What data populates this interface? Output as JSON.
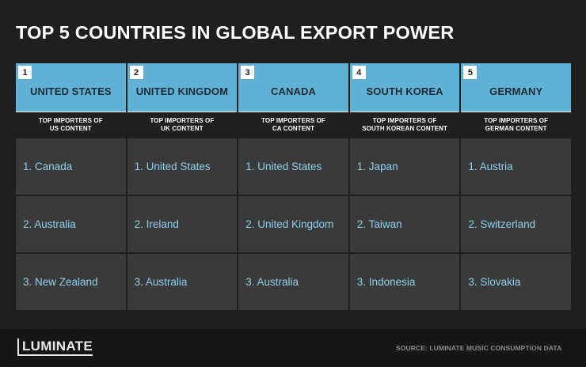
{
  "title": "TOP 5 COUNTRIES IN GLOBAL EXPORT POWER",
  "columns": [
    {
      "rank": "1",
      "country": "UNITED STATES",
      "subhead_line1": "TOP IMPORTERS OF",
      "subhead_line2": "US CONTENT",
      "importers": [
        "1. Canada",
        "2. Australia",
        "3. New Zealand"
      ]
    },
    {
      "rank": "2",
      "country": "UNITED KINGDOM",
      "subhead_line1": "TOP IMPORTERS OF",
      "subhead_line2": "UK CONTENT",
      "importers": [
        "1. United States",
        "2. Ireland",
        "3. Australia"
      ]
    },
    {
      "rank": "3",
      "country": "CANADA",
      "subhead_line1": "TOP IMPORTERS OF",
      "subhead_line2": "CA CONTENT",
      "importers": [
        "1. United States",
        "2. United Kingdom",
        "3. Australia"
      ]
    },
    {
      "rank": "4",
      "country": "SOUTH KOREA",
      "subhead_line1": "TOP IMPORTERS OF",
      "subhead_line2": "SOUTH KOREAN CONTENT",
      "importers": [
        "1. Japan",
        "2. Taiwan",
        "3. Indonesia"
      ]
    },
    {
      "rank": "5",
      "country": "GERMANY",
      "subhead_line1": "TOP IMPORTERS OF",
      "subhead_line2": "GERMAN CONTENT",
      "importers": [
        "1. Austria",
        "2. Switzerland",
        "3. Slovakia"
      ]
    }
  ],
  "footer": {
    "logo": "LUMINATE",
    "source": "SOURCE: LUMINATE MUSIC CONSUMPTION DATA"
  },
  "colors": {
    "background": "#1f1f1f",
    "header_blue": "#5fb2d6",
    "cell_gray": "#3a3a3a",
    "importer_text": "#8fd0ee"
  }
}
